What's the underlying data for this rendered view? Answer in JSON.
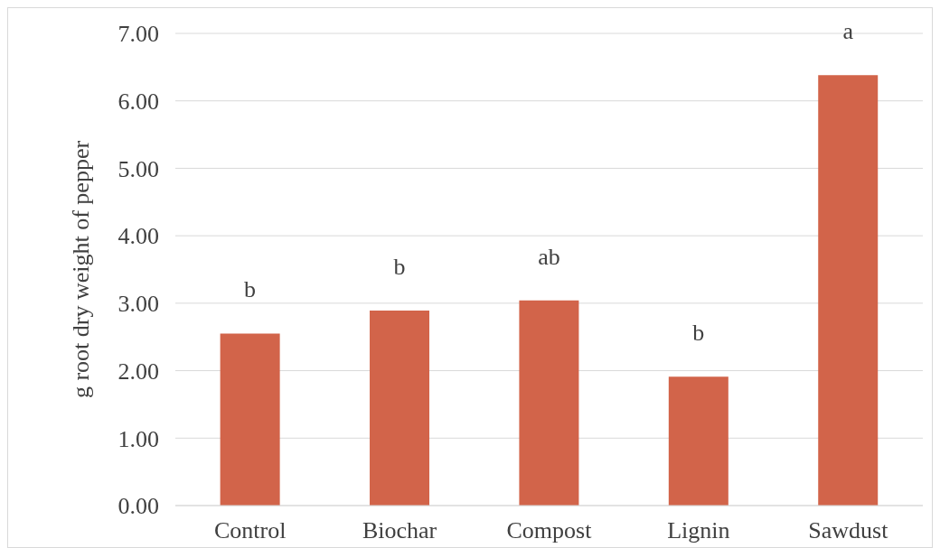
{
  "chart_data": {
    "type": "bar",
    "ylabel": "g root dry weight of pepper",
    "categories": [
      "Control",
      "Biochar",
      "Compost",
      "Lignin",
      "Sawdust"
    ],
    "values": [
      2.55,
      2.89,
      3.04,
      1.91,
      6.38
    ],
    "color": "#d2644a",
    "ylim": [
      0,
      7
    ],
    "yticks": [
      {
        "value": 0,
        "label": "0.00"
      },
      {
        "value": 1,
        "label": "1.00"
      },
      {
        "value": 2,
        "label": "2.00"
      },
      {
        "value": 3,
        "label": "3.00"
      },
      {
        "value": 4,
        "label": "4.00"
      },
      {
        "value": 5,
        "label": "5.00"
      },
      {
        "value": 6,
        "label": "6.00"
      },
      {
        "value": 7,
        "label": "7.00"
      }
    ],
    "grid": "y",
    "annotations": [
      "b",
      "b",
      "ab",
      "b",
      "a"
    ]
  }
}
